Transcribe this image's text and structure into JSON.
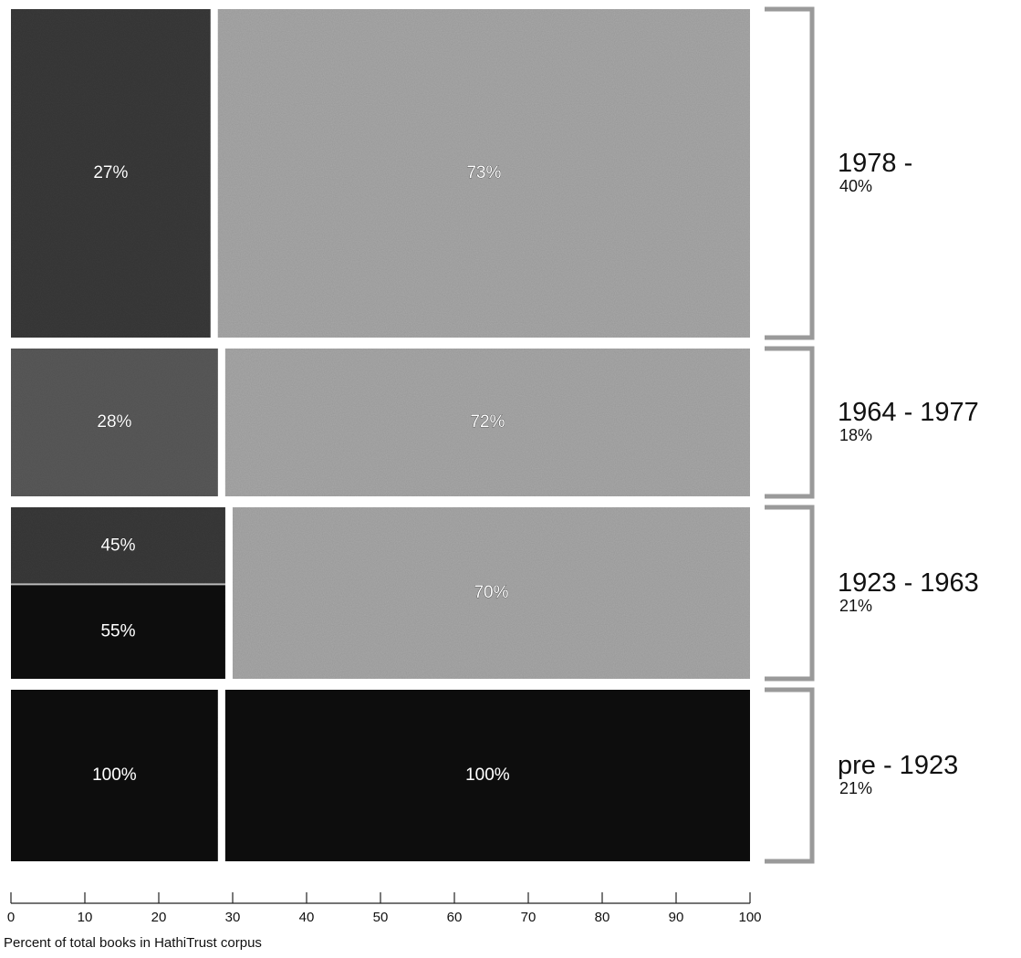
{
  "chart_data": {
    "type": "bar",
    "layout": "stacked-horizontal-marimekko",
    "xlabel": "Percent of total books in HathiTrust corpus",
    "xlim": [
      0,
      100
    ],
    "xticks": [
      "0",
      "10",
      "20",
      "30",
      "40",
      "50",
      "60",
      "70",
      "80",
      "90",
      "100"
    ],
    "colors": {
      "dark_block": "#3a3a3a",
      "mid_block": "#5a5a5a",
      "light_block": "#a9a9a9",
      "black_block": "#0c0c0c",
      "bracket": "#9a9a9a"
    },
    "bands": [
      {
        "period": "1978 -",
        "share": "40%",
        "boundary_x": 27.5,
        "segments": [
          {
            "label": "27%",
            "value": 27,
            "tone": "dark_block"
          },
          {
            "label": "73%",
            "value": 73,
            "tone": "light_block"
          }
        ]
      },
      {
        "period": "1964 - 1977",
        "share": "18%",
        "boundary_x": 28.5,
        "segments": [
          {
            "label": "28%",
            "value": 28,
            "tone": "mid_block"
          },
          {
            "label": "72%",
            "value": 72,
            "tone": "light_block"
          }
        ]
      },
      {
        "period": "1923 - 1963",
        "share": "21%",
        "boundary_x": 29.5,
        "segments": [
          {
            "label": "45%",
            "value": 45,
            "tone": "dark_block",
            "stack": "top",
            "stack_fraction": 0.45
          },
          {
            "label": "55%",
            "value": 55,
            "tone": "black_block",
            "stack": "bottom",
            "stack_fraction": 0.55
          },
          {
            "label": "70%",
            "value": 70,
            "tone": "light_block"
          }
        ]
      },
      {
        "period": "pre - 1923",
        "share": "21%",
        "boundary_x": 28.5,
        "segments": [
          {
            "label": "100%",
            "value": 100,
            "tone": "black_block"
          },
          {
            "label": "100%",
            "value": 100,
            "tone": "black_block"
          }
        ]
      }
    ]
  }
}
